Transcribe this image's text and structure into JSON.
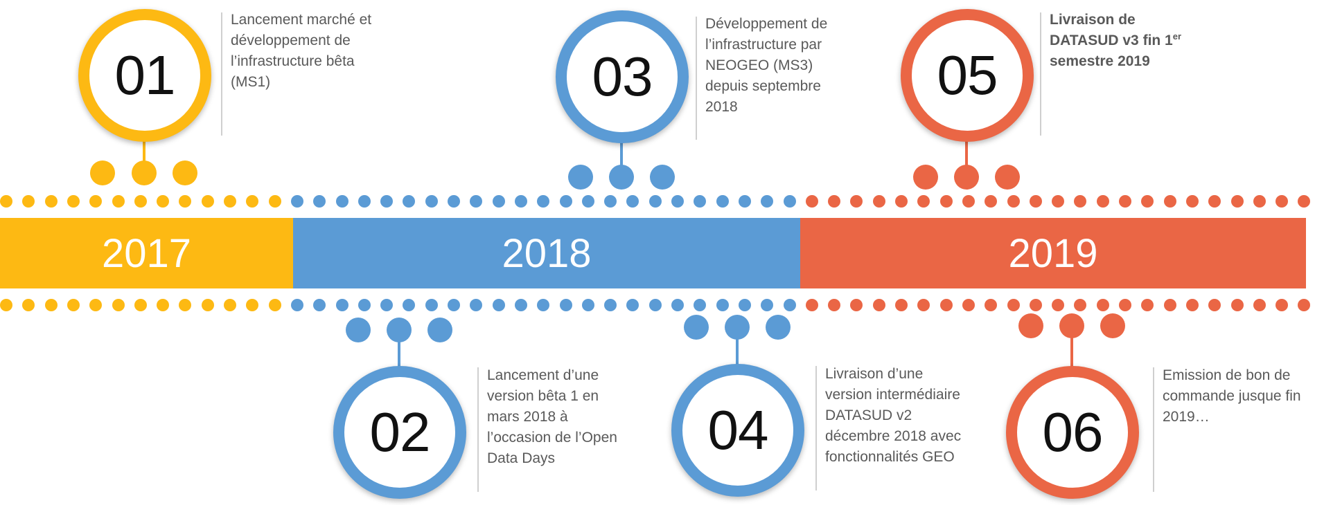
{
  "colors": {
    "2017": "#FDB913",
    "2018": "#5B9BD5",
    "2019": "#EA6645",
    "divider": "#cfcfcf",
    "text": "#595959"
  },
  "years": [
    {
      "label": "2017",
      "color_key": "2017"
    },
    {
      "label": "2018",
      "color_key": "2018"
    },
    {
      "label": "2019",
      "color_key": "2019"
    }
  ],
  "milestones": [
    {
      "number": "01",
      "color_key": "2017",
      "position": "top",
      "text": "Lancement marché et\ndéveloppement de\nl’infrastructure bêta\n(MS1)",
      "bold": false,
      "sup": ""
    },
    {
      "number": "02",
      "color_key": "2018",
      "position": "bottom",
      "text": "Lancement d’une\nversion bêta 1 en\nmars 2018 à\nl’occasion de l’Open\nData Days",
      "bold": false,
      "sup": ""
    },
    {
      "number": "03",
      "color_key": "2018",
      "position": "top",
      "text": "Développement de\nl’infrastructure par\nNEOGEO (MS3)\ndepuis septembre\n2018",
      "bold": false,
      "sup": ""
    },
    {
      "number": "04",
      "color_key": "2018",
      "position": "bottom",
      "text": "Livraison d’une\nversion intermédiaire\nDATASUD v2\ndécembre 2018 avec\nfonctionnalités GEO",
      "bold": false,
      "sup": ""
    },
    {
      "number": "05",
      "color_key": "2019",
      "position": "top",
      "text": "Livraison de\nDATASUD v3 fin 1",
      "bold": true,
      "sup": "er",
      "text_after": "\nsemestre 2019"
    },
    {
      "number": "06",
      "color_key": "2019",
      "position": "bottom",
      "text": "Emission de bon de\ncommande jusque fin\n2019…",
      "bold": false,
      "sup": ""
    }
  ]
}
